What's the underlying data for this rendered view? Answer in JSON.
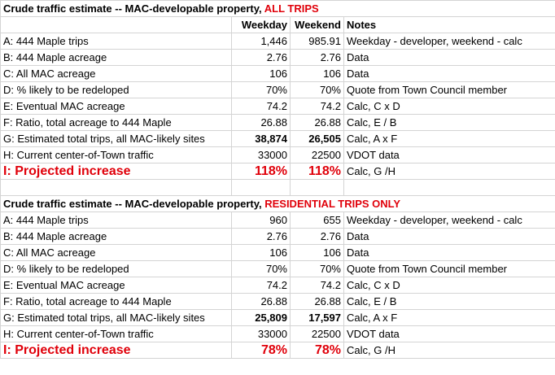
{
  "section1": {
    "title": "Crude traffic estimate -- MAC-developable property, ",
    "title_highlight": "ALL TRIPS",
    "headers": [
      "Weekday",
      "Weekend",
      "Notes"
    ],
    "rows": [
      {
        "label": "A: 444 Maple trips",
        "weekday": "1,446",
        "weekend": "985.91",
        "notes": "Weekday - developer, weekend  - calc"
      },
      {
        "label": "B: 444 Maple acreage",
        "weekday": "2.76",
        "weekend": "2.76",
        "notes": "Data"
      },
      {
        "label": "C: All MAC acreage",
        "weekday": "106",
        "weekend": "106",
        "notes": "Data"
      },
      {
        "label": "D: % likely to be redeloped",
        "weekday": "70%",
        "weekend": "70%",
        "notes": "Quote from Town Council member"
      },
      {
        "label": "E: Eventual MAC acreage",
        "weekday": "74.2",
        "weekend": "74.2",
        "notes": "Calc, C x D"
      },
      {
        "label": "F: Ratio, total acreage to 444 Maple",
        "weekday": "26.88",
        "weekend": "26.88",
        "notes": "Calc, E / B"
      },
      {
        "label": "G: Estimated total trips, all MAC-likely sites",
        "weekday": "38,874",
        "weekend": "26,505",
        "notes": "Calc, A x F"
      },
      {
        "label": "H: Current center-of-Town traffic",
        "weekday": "33000",
        "weekend": "22500",
        "notes": "VDOT data"
      }
    ],
    "projected": {
      "label": "I: Projected increase",
      "weekday": "118%",
      "weekend": "118%",
      "notes": "Calc, G /H"
    }
  },
  "section2": {
    "title": "Crude traffic estimate -- MAC-developable property, ",
    "title_highlight": "RESIDENTIAL TRIPS ONLY",
    "rows": [
      {
        "label": "A: 444 Maple trips",
        "weekday": "960",
        "weekend": "655",
        "notes": "Weekday - developer, weekend  - calc"
      },
      {
        "label": "B: 444 Maple acreage",
        "weekday": "2.76",
        "weekend": "2.76",
        "notes": "Data"
      },
      {
        "label": "C: All MAC acreage",
        "weekday": "106",
        "weekend": "106",
        "notes": "Data"
      },
      {
        "label": "D: % likely to be redeloped",
        "weekday": "70%",
        "weekend": "70%",
        "notes": "Quote from Town Council member"
      },
      {
        "label": "E: Eventual MAC acreage",
        "weekday": "74.2",
        "weekend": "74.2",
        "notes": "Calc, C x D"
      },
      {
        "label": "F: Ratio, total acreage to 444 Maple",
        "weekday": "26.88",
        "weekend": "26.88",
        "notes": "Calc, E / B"
      },
      {
        "label": "G: Estimated total trips, all MAC-likely sites",
        "weekday": "25,809",
        "weekend": "17,597",
        "notes": "Calc, A x F"
      },
      {
        "label": "H: Current center-of-Town traffic",
        "weekday": "33000",
        "weekend": "22500",
        "notes": "VDOT data"
      }
    ],
    "projected": {
      "label": "I: Projected increase",
      "weekday": "78%",
      "weekend": "78%",
      "notes": "Calc, G /H"
    }
  },
  "colors": {
    "highlight": "#e0000a",
    "gridline": "#d4d4d4"
  }
}
